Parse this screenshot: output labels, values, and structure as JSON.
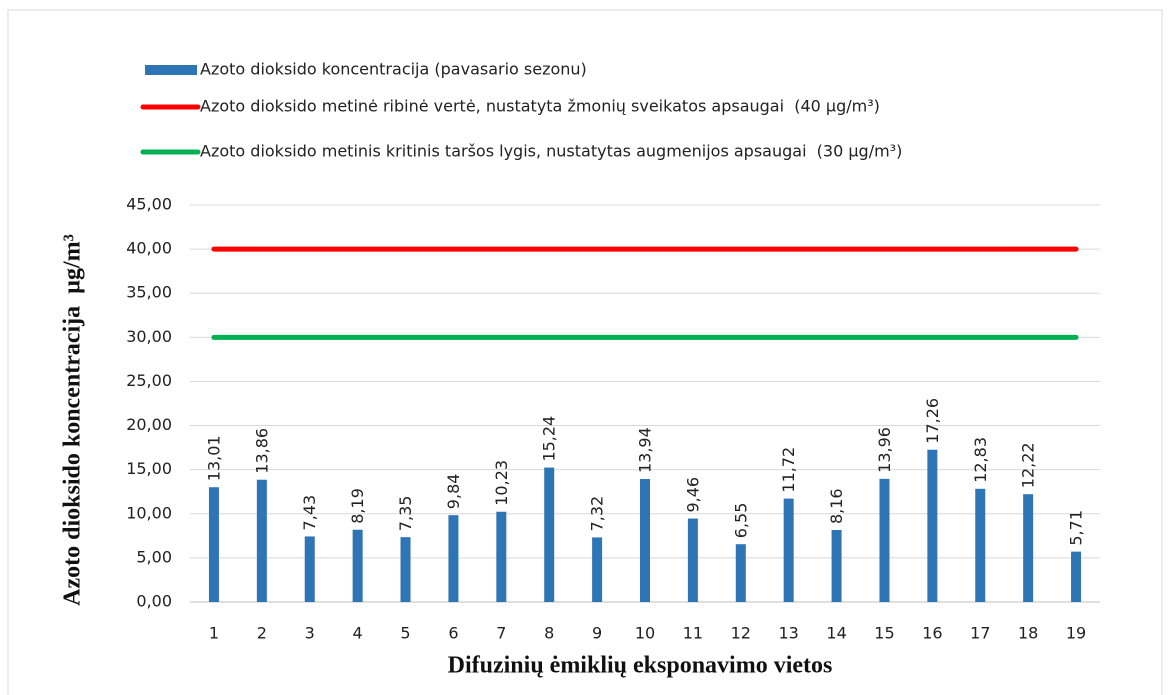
{
  "chart_data": {
    "type": "bar",
    "xlabel": "Difuzinių ėmiklių eksponavimo vietos",
    "ylabel": "Azoto dioksido koncentracija  µg/m³",
    "categories": [
      "1",
      "2",
      "3",
      "4",
      "5",
      "6",
      "7",
      "8",
      "9",
      "10",
      "11",
      "12",
      "13",
      "14",
      "15",
      "16",
      "17",
      "18",
      "19"
    ],
    "series": [
      {
        "name": "Azoto dioksido koncentracija (pavasario sezonu)",
        "color": "#2e75b6",
        "type": "bar",
        "values": [
          13.01,
          13.86,
          7.43,
          8.19,
          7.35,
          9.84,
          10.23,
          15.24,
          7.32,
          13.94,
          9.46,
          6.55,
          11.72,
          8.16,
          13.96,
          17.26,
          12.83,
          12.22,
          5.71
        ],
        "value_labels": [
          "13,01",
          "13,86",
          "7,43",
          "8,19",
          "7,35",
          "9,84",
          "10,23",
          "15,24",
          "7,32",
          "13,94",
          "9,46",
          "6,55",
          "11,72",
          "8,16",
          "13,96",
          "17,26",
          "12,83",
          "12,22",
          "5,71"
        ]
      },
      {
        "name": "Azoto dioksido metinė ribinė vertė, nustatyta žmonių sveikatos apsaugai  (40 µg/m³)",
        "color": "#ff0000",
        "type": "line",
        "values": [
          40,
          40,
          40,
          40,
          40,
          40,
          40,
          40,
          40,
          40,
          40,
          40,
          40,
          40,
          40,
          40,
          40,
          40,
          40
        ]
      },
      {
        "name": "Azoto dioksido metinis kritinis taršos lygis, nustatytas augmenijos apsaugai  (30 µg/m³)",
        "color": "#00b050",
        "type": "line",
        "values": [
          30,
          30,
          30,
          30,
          30,
          30,
          30,
          30,
          30,
          30,
          30,
          30,
          30,
          30,
          30,
          30,
          30,
          30,
          30
        ]
      }
    ],
    "ylim": [
      0,
      45
    ],
    "yticks": [
      {
        "value": 0,
        "label": "0,00"
      },
      {
        "value": 5,
        "label": "5,00"
      },
      {
        "value": 10,
        "label": "10,00"
      },
      {
        "value": 15,
        "label": "15,00"
      },
      {
        "value": 20,
        "label": "20,00"
      },
      {
        "value": 25,
        "label": "25,00"
      },
      {
        "value": 30,
        "label": "30,00"
      },
      {
        "value": 35,
        "label": "35,00"
      },
      {
        "value": 40,
        "label": "40,00"
      },
      {
        "value": 45,
        "label": "45,00"
      }
    ],
    "grid": true,
    "legend": "top-left"
  }
}
